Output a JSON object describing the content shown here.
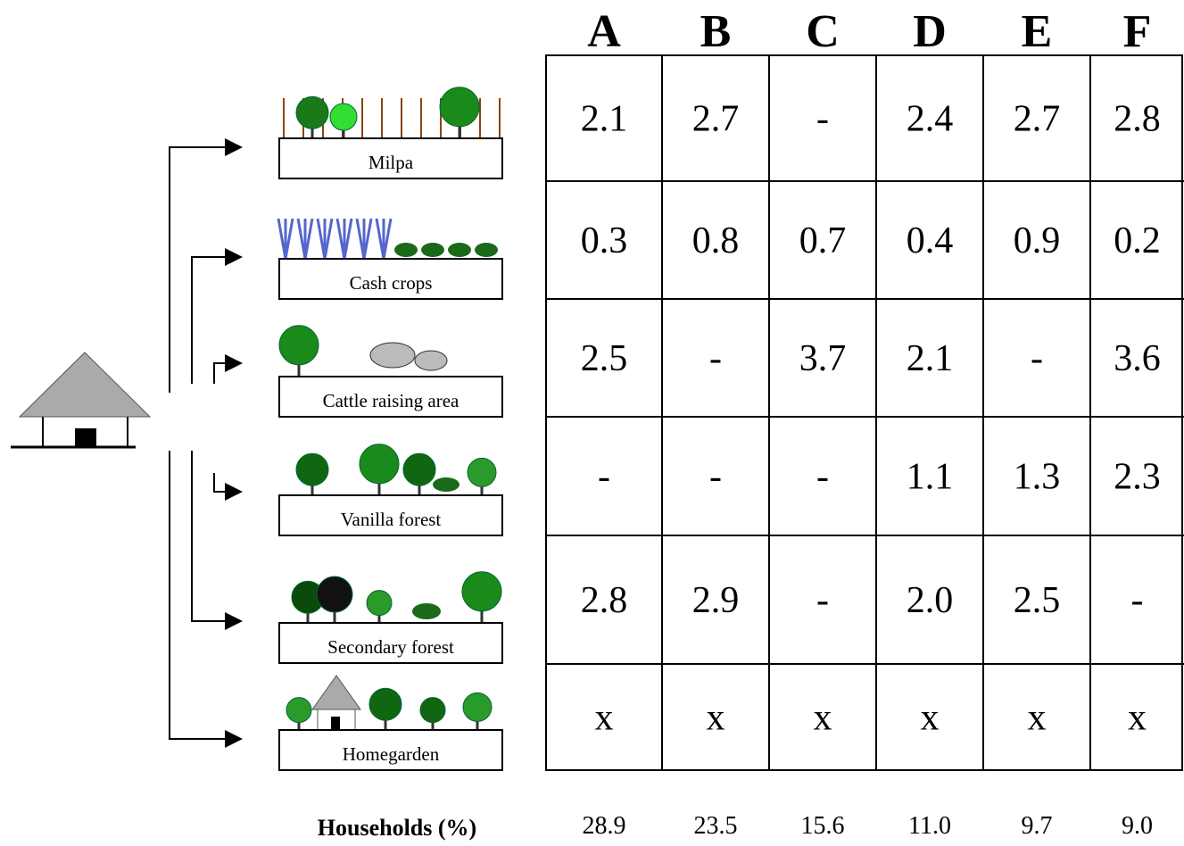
{
  "columns": [
    "A",
    "B",
    "C",
    "D",
    "E",
    "F"
  ],
  "rows": [
    {
      "label": "Milpa",
      "cells": [
        "2.1",
        "2.7",
        "-",
        "2.4",
        "2.7",
        "2.8"
      ]
    },
    {
      "label": "Cash crops",
      "cells": [
        "0.3",
        "0.8",
        "0.7",
        "0.4",
        "0.9",
        "0.2"
      ]
    },
    {
      "label": "Cattle raising area",
      "cells": [
        "2.5",
        "-",
        "3.7",
        "2.1",
        "-",
        "3.6"
      ]
    },
    {
      "label": "Vanilla forest",
      "cells": [
        "-",
        "-",
        "-",
        "1.1",
        "1.3",
        "2.3"
      ]
    },
    {
      "label": "Secondary forest",
      "cells": [
        "2.8",
        "2.9",
        "-",
        "2.0",
        "2.5",
        "-"
      ]
    },
    {
      "label": "Homegarden",
      "cells": [
        "x",
        "x",
        "x",
        "x",
        "x",
        "x"
      ]
    }
  ],
  "households": {
    "label": "Households  (%)",
    "values": [
      "28.9",
      "23.5",
      "15.6",
      "11.0",
      "9.7",
      "9.0"
    ]
  }
}
